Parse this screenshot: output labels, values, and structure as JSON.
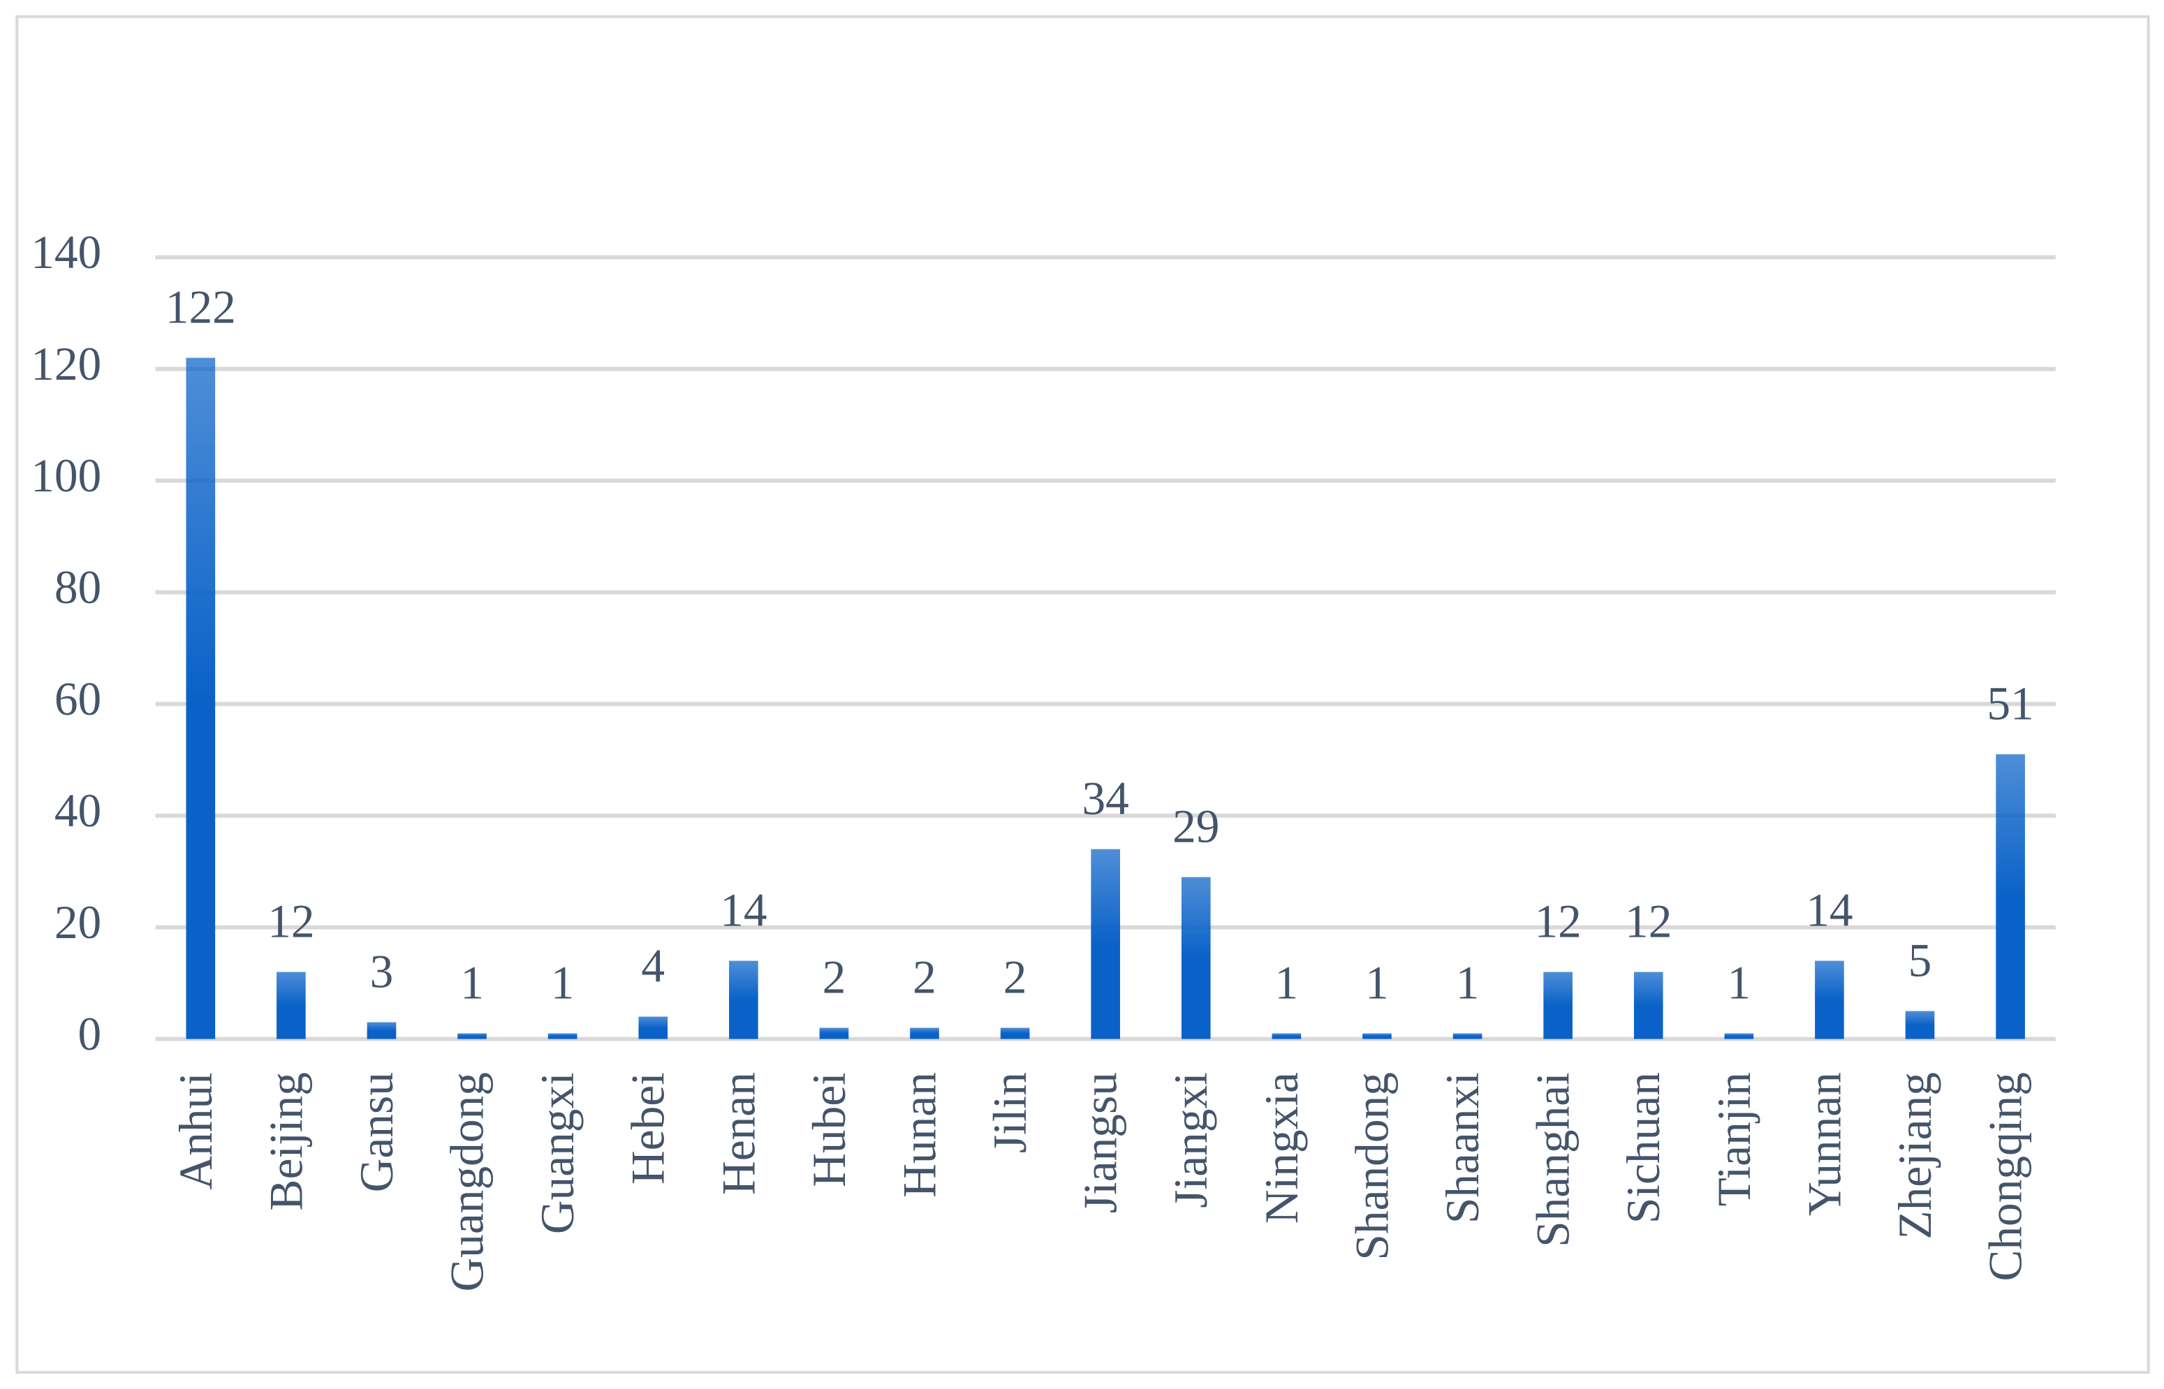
{
  "chart_data": {
    "type": "bar",
    "categories": [
      "Anhui",
      "Beijing",
      "Gansu",
      "Guangdong",
      "Guangxi",
      "Hebei",
      "Henan",
      "Hubei",
      "Hunan",
      "Jilin",
      "Jiangsu",
      "Jiangxi",
      "Ningxia",
      "Shandong",
      "Shaanxi",
      "Shanghai",
      "Sichuan",
      "Tianjin",
      "Yunnan",
      "Zhejiang",
      "Chongqing"
    ],
    "values": [
      122,
      12,
      3,
      1,
      1,
      4,
      14,
      2,
      2,
      2,
      34,
      29,
      1,
      1,
      1,
      12,
      12,
      1,
      14,
      5,
      51
    ],
    "color": "#0a62c8",
    "ylim": [
      0,
      140
    ],
    "yticks": [
      0,
      20,
      40,
      60,
      80,
      100,
      120,
      140
    ],
    "grid": true
  }
}
